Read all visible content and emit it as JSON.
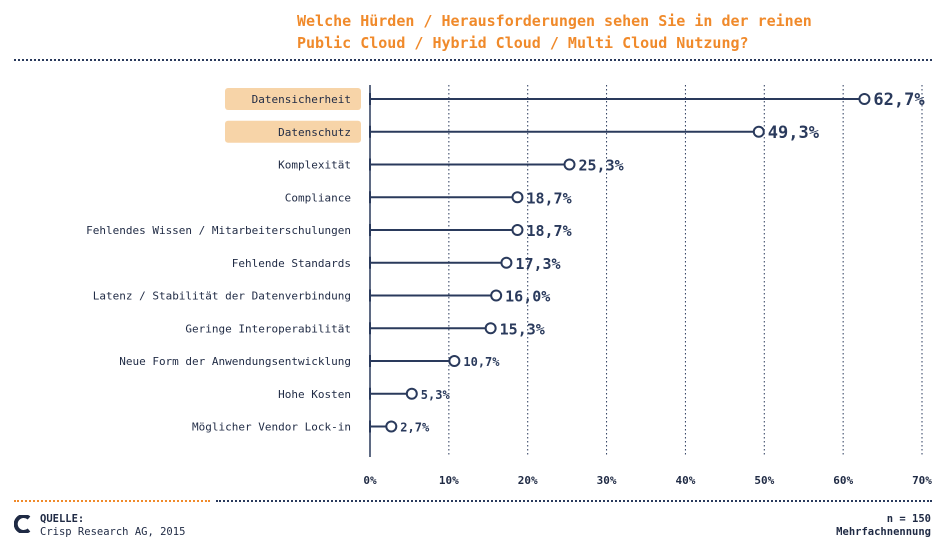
{
  "header": {
    "title_line1": "Welche Hürden / Herausforderungen sehen Sie in der reinen",
    "title_line2": "Public Cloud / Hybrid Cloud / Multi Cloud Nutzung?"
  },
  "colors": {
    "title": "#f08a2b",
    "navy": "#2a3a5c",
    "highlight": "#f7d4a8"
  },
  "chart_data": {
    "type": "lollipop",
    "categories": [
      "Datensicherheit",
      "Datenschutz",
      "Komplexität",
      "Compliance",
      "Fehlendes Wissen / Mitarbeiterschulungen",
      "Fehlende Standards",
      "Latenz / Stabilität der Datenverbindung",
      "Geringe Interoperabilität",
      "Neue Form der Anwendungsentwicklung",
      "Hohe Kosten",
      "Möglicher Vendor Lock-in"
    ],
    "values": [
      62.7,
      49.3,
      25.3,
      18.7,
      18.7,
      17.3,
      16.0,
      15.3,
      10.7,
      5.3,
      2.7
    ],
    "value_labels": [
      "62,7%",
      "49,3%",
      "25,3%",
      "18,7%",
      "18,7%",
      "17,3%",
      "16,0%",
      "15,3%",
      "10,7%",
      "5,3%",
      "2,7%"
    ],
    "highlighted": [
      true,
      true,
      false,
      false,
      false,
      false,
      false,
      false,
      false,
      false,
      false
    ],
    "xlim": [
      0,
      70
    ],
    "xticks": [
      "0%",
      "10%",
      "20%",
      "30%",
      "40%",
      "50%",
      "60%",
      "70%"
    ],
    "grid": "vertical-dotted"
  },
  "footer": {
    "source_label": "QUELLE:",
    "source_text": "Crisp Research AG, 2015",
    "n_text": "n = 150",
    "note_text": "Mehrfachnennung"
  }
}
